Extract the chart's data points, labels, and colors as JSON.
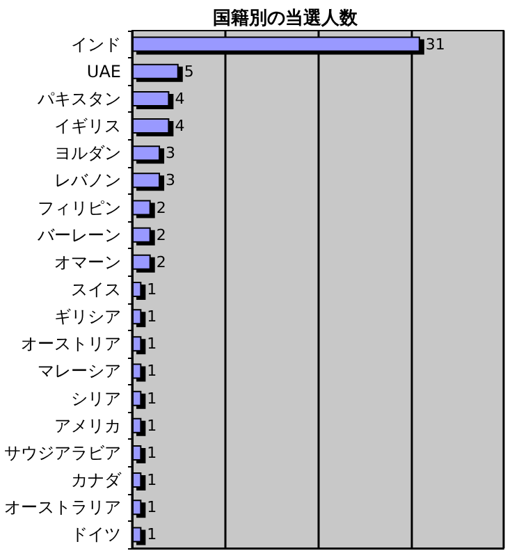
{
  "chart_data": {
    "type": "bar",
    "orientation": "horizontal",
    "title": "国籍別の当選人数",
    "categories": [
      "インド",
      "UAE",
      "パキスタン",
      "イギリス",
      "ヨルダン",
      "レバノン",
      "フィリピン",
      "バーレーン",
      "オマーン",
      "スイス",
      "ギリシア",
      "オーストリア",
      "マレーシア",
      "シリア",
      "アメリカ",
      "サウジアラビア",
      "カナダ",
      "オーストラリア",
      "ドイツ"
    ],
    "values": [
      31,
      5,
      4,
      4,
      3,
      3,
      2,
      2,
      2,
      1,
      1,
      1,
      1,
      1,
      1,
      1,
      1,
      1,
      1
    ],
    "color": "#9999ff",
    "xlim": [
      0,
      40
    ],
    "xticks": [
      {
        "value": 0,
        "label": null
      },
      {
        "value": 10,
        "label": null
      },
      {
        "value": 20,
        "label": null
      },
      {
        "value": 30,
        "label": null
      },
      {
        "value": 40,
        "label": null
      }
    ],
    "grid": "x",
    "tick_labels": "y",
    "data_labels": true
  }
}
